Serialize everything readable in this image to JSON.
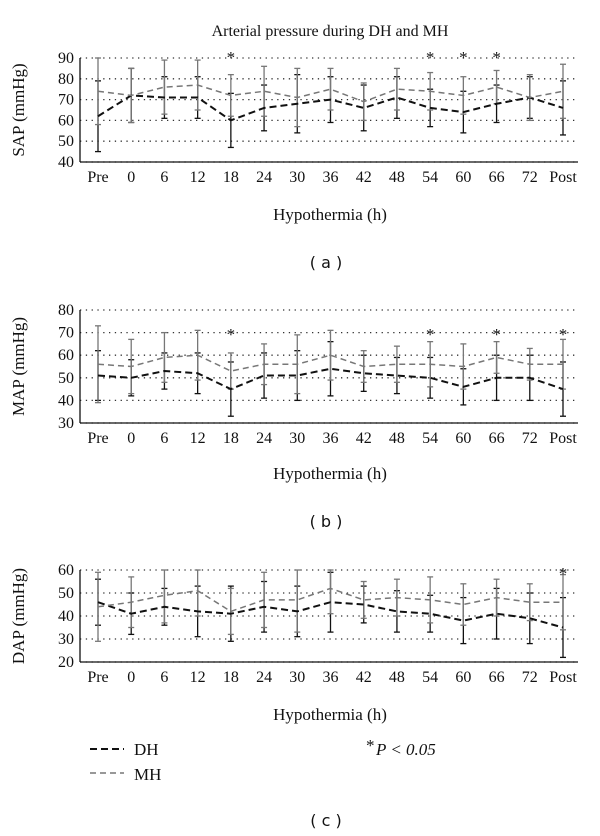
{
  "figure": {
    "title": "Arterial pressure during DH and MH",
    "legend": {
      "dh_label": "DH",
      "mh_label": "MH",
      "significance_star": "*",
      "significance_text": "P < 0.05"
    }
  },
  "chart_data": [
    {
      "type": "line",
      "panel_label": "( a )",
      "title": "Arterial pressure during DH and MH",
      "xlabel": "Hypothermia (h)",
      "ylabel": "SAP (mmHg)",
      "categories": [
        "Pre",
        "0",
        "6",
        "12",
        "18",
        "24",
        "30",
        "36",
        "42",
        "48",
        "54",
        "60",
        "66",
        "72",
        "Post"
      ],
      "ylim": [
        40,
        90
      ],
      "yticks": [
        40,
        50,
        60,
        70,
        80,
        90
      ],
      "grid": true,
      "series": [
        {
          "name": "DH",
          "style": "dashed-black",
          "values": [
            62,
            72,
            71,
            71,
            60,
            66,
            68,
            70,
            66,
            71,
            66,
            64,
            68,
            71,
            66
          ],
          "error": [
            17,
            13,
            10,
            10,
            13,
            11,
            14,
            11,
            11,
            10,
            9,
            10,
            9,
            10,
            13
          ]
        },
        {
          "name": "MH",
          "style": "dashed-gray",
          "values": [
            74,
            72,
            76,
            77,
            72,
            74,
            71,
            75,
            69,
            75,
            74,
            72,
            76,
            71,
            74
          ],
          "error": [
            16,
            13,
            13,
            12,
            10,
            12,
            14,
            10,
            9,
            10,
            9,
            9,
            8,
            11,
            13
          ]
        }
      ],
      "significance_marks": [
        "18",
        "54",
        "60",
        "66"
      ]
    },
    {
      "type": "line",
      "panel_label": "( b )",
      "xlabel": "Hypothermia (h)",
      "ylabel": "MAP (mmHg)",
      "categories": [
        "Pre",
        "0",
        "6",
        "12",
        "18",
        "24",
        "30",
        "36",
        "42",
        "48",
        "54",
        "60",
        "66",
        "72",
        "Post"
      ],
      "ylim": [
        30,
        80
      ],
      "yticks": [
        30,
        40,
        50,
        60,
        70,
        80
      ],
      "grid": true,
      "series": [
        {
          "name": "DH",
          "style": "dashed-black",
          "values": [
            51,
            50,
            53,
            52,
            45,
            51,
            51,
            54,
            52,
            51,
            50,
            46,
            50,
            50,
            45
          ],
          "error": [
            11,
            8,
            8,
            9,
            12,
            10,
            11,
            12,
            8,
            8,
            9,
            8,
            10,
            10,
            12
          ]
        },
        {
          "name": "MH",
          "style": "dashed-gray",
          "values": [
            56,
            55,
            59,
            60,
            53,
            56,
            56,
            60,
            55,
            56,
            56,
            55,
            59,
            56,
            56
          ],
          "error": [
            17,
            12,
            11,
            11,
            8,
            9,
            13,
            11,
            7,
            8,
            10,
            10,
            7,
            7,
            11
          ]
        }
      ],
      "significance_marks": [
        "18",
        "54",
        "66",
        "Post"
      ]
    },
    {
      "type": "line",
      "panel_label": "( c )",
      "xlabel": "Hypothermia (h)",
      "ylabel": "DAP (mmHg)",
      "categories": [
        "Pre",
        "0",
        "6",
        "12",
        "18",
        "24",
        "30",
        "36",
        "42",
        "48",
        "54",
        "60",
        "66",
        "72",
        "Post"
      ],
      "ylim": [
        20,
        60
      ],
      "yticks": [
        20,
        30,
        40,
        50,
        60
      ],
      "grid": true,
      "series": [
        {
          "name": "DH",
          "style": "dashed-black",
          "values": [
            46,
            41,
            44,
            42,
            41,
            44,
            42,
            46,
            45,
            42,
            41,
            38,
            41,
            39,
            35
          ],
          "error": [
            10,
            9,
            8,
            11,
            12,
            11,
            11,
            13,
            8,
            9,
            8,
            10,
            11,
            11,
            13
          ]
        },
        {
          "name": "MH",
          "style": "dashed-gray",
          "values": [
            44,
            46,
            49,
            51,
            42,
            47,
            47,
            52,
            47,
            48,
            47,
            45,
            48,
            46,
            46
          ],
          "error": [
            15,
            11,
            12,
            11,
            10,
            12,
            14,
            11,
            8,
            8,
            10,
            9,
            8,
            8,
            12
          ]
        }
      ],
      "significance_marks": [
        "Post"
      ]
    }
  ]
}
